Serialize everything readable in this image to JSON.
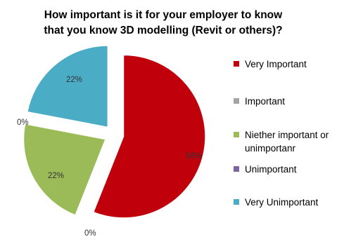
{
  "chart_data": {
    "type": "pie",
    "title_lines": [
      "How important is it for your employer to know",
      "that you know 3D modelling (Revit or others)?"
    ],
    "categories": [
      "Very Important",
      "Important",
      "Niether important or unimportanr",
      "Unimportant",
      "Very Unimportant"
    ],
    "legend_lines": [
      [
        "Very Important"
      ],
      [
        "Important"
      ],
      [
        "Niether important or",
        "unimportanr"
      ],
      [
        "Unimportant"
      ],
      [
        "Very Unimportant"
      ]
    ],
    "values": [
      56,
      0,
      22,
      0,
      22
    ],
    "data_labels": [
      "56%",
      "0%",
      "22%",
      "0%",
      "22%"
    ],
    "colors": [
      "#C0000B",
      "#A5A5A5",
      "#9BBB59",
      "#8064A2",
      "#4BACC6"
    ],
    "exploded": true,
    "legend_position": "right"
  }
}
